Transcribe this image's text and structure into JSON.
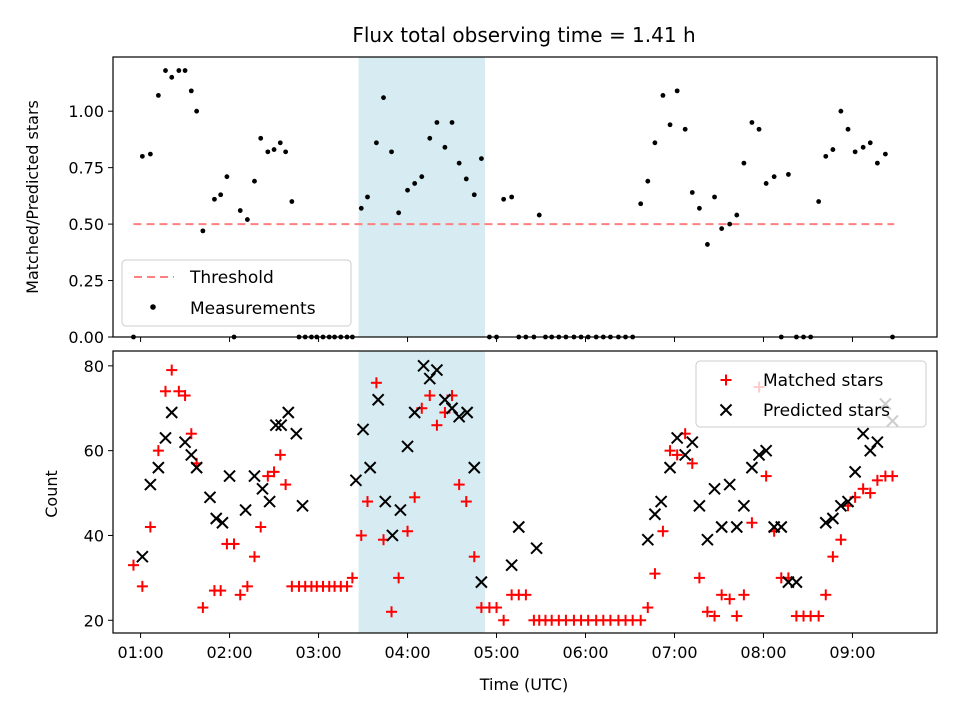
{
  "chart_data": [
    {
      "type": "scatter",
      "title": "Flux total observing time = 1.41 h",
      "xlabel": "",
      "ylabel": "Matched/Predicted stars",
      "xlim": [
        0.69,
        9.95
      ],
      "ylim": [
        0,
        1.24
      ],
      "yticks": [
        0.0,
        0.25,
        0.5,
        0.75,
        1.0
      ],
      "ytick_labels": [
        "0.00",
        "0.25",
        "0.50",
        "0.75",
        "1.00"
      ],
      "highlight_span": {
        "x0": 3.45,
        "x1": 4.87,
        "color": "#add8e6"
      },
      "threshold": {
        "name": "Threshold",
        "value": 0.5,
        "x0": 0.92,
        "x1": 9.47,
        "color": "#ff8080"
      },
      "legend": {
        "placement": "lower-left",
        "entries": [
          "Threshold",
          "Measurements"
        ]
      },
      "series": [
        {
          "name": "Measurements",
          "color": "#000000",
          "x": [
            0.92,
            1.02,
            1.11,
            1.2,
            1.28,
            1.35,
            1.43,
            1.5,
            1.57,
            1.63,
            1.7,
            1.83,
            1.9,
            1.97,
            2.05,
            2.12,
            2.2,
            2.28,
            2.35,
            2.43,
            2.5,
            2.57,
            2.63,
            2.7,
            2.78,
            2.85,
            2.92,
            2.98,
            3.05,
            3.12,
            3.18,
            3.25,
            3.32,
            3.38,
            3.48,
            3.55,
            3.65,
            3.73,
            3.82,
            3.9,
            4.0,
            4.08,
            4.16,
            4.25,
            4.33,
            4.42,
            4.5,
            4.58,
            4.66,
            4.75,
            4.83,
            4.92,
            5.0,
            5.08,
            5.17,
            5.25,
            5.33,
            5.42,
            5.48,
            5.55,
            5.62,
            5.7,
            5.78,
            5.87,
            5.95,
            6.03,
            6.12,
            6.2,
            6.28,
            6.37,
            6.45,
            6.53,
            6.62,
            6.7,
            6.78,
            6.87,
            6.95,
            7.03,
            7.12,
            7.2,
            7.28,
            7.37,
            7.45,
            7.53,
            7.62,
            7.7,
            7.78,
            7.87,
            7.95,
            8.03,
            8.12,
            8.2,
            8.28,
            8.37,
            8.45,
            8.53,
            8.62,
            8.7,
            8.78,
            8.87,
            8.95,
            9.03,
            9.12,
            9.2,
            9.28,
            9.37,
            9.45
          ],
          "y": [
            0.0,
            0.8,
            0.81,
            1.07,
            1.18,
            1.15,
            1.18,
            1.18,
            1.09,
            1.0,
            0.47,
            0.61,
            0.63,
            0.71,
            0.0,
            0.56,
            0.52,
            0.69,
            0.88,
            0.82,
            0.83,
            0.86,
            0.82,
            0.6,
            0.0,
            0.0,
            0.0,
            0.0,
            0.0,
            0.0,
            0.0,
            0.0,
            0.0,
            0.0,
            0.57,
            0.62,
            0.86,
            1.06,
            0.82,
            0.55,
            0.65,
            0.68,
            0.71,
            0.88,
            0.95,
            0.84,
            0.95,
            0.77,
            0.7,
            0.63,
            0.79,
            0.0,
            0.0,
            0.61,
            0.62,
            0.0,
            0.0,
            0.0,
            0.54,
            0.0,
            0.0,
            0.0,
            0.0,
            0.0,
            0.0,
            0.0,
            0.0,
            0.0,
            0.0,
            0.0,
            0.0,
            0.0,
            0.59,
            0.69,
            0.86,
            1.07,
            0.94,
            1.09,
            0.92,
            0.64,
            0.57,
            0.41,
            0.62,
            0.48,
            0.5,
            0.54,
            0.77,
            0.95,
            0.92,
            0.68,
            0.71,
            0.0,
            0.72,
            0.0,
            0.0,
            0.0,
            0.6,
            0.8,
            0.83,
            1.0,
            0.92,
            0.82,
            0.84,
            0.86,
            0.77,
            0.81,
            0.0
          ]
        }
      ]
    },
    {
      "type": "scatter",
      "title": "",
      "xlabel": "Time (UTC)",
      "ylabel": "Count",
      "xlim": [
        0.69,
        9.95
      ],
      "ylim": [
        17,
        83.5
      ],
      "xticks": [
        1,
        2,
        3,
        4,
        5,
        6,
        7,
        8,
        9
      ],
      "xtick_labels": [
        "01:00",
        "02:00",
        "03:00",
        "04:00",
        "05:00",
        "06:00",
        "07:00",
        "08:00",
        "09:00"
      ],
      "yticks": [
        20,
        40,
        60,
        80
      ],
      "ytick_labels": [
        "20",
        "40",
        "60",
        "80"
      ],
      "highlight_span": {
        "x0": 3.45,
        "x1": 4.87,
        "color": "#add8e6"
      },
      "legend": {
        "placement": "top-right",
        "entries": [
          "Matched stars",
          "Predicted stars"
        ]
      },
      "series": [
        {
          "name": "Matched stars",
          "marker": "plus",
          "color": "#ff0000",
          "x": [
            0.92,
            1.02,
            1.11,
            1.2,
            1.28,
            1.35,
            1.43,
            1.5,
            1.57,
            1.63,
            1.7,
            1.83,
            1.9,
            1.97,
            2.05,
            2.12,
            2.2,
            2.28,
            2.35,
            2.43,
            2.5,
            2.57,
            2.63,
            2.7,
            2.78,
            2.85,
            2.92,
            2.98,
            3.05,
            3.12,
            3.18,
            3.25,
            3.32,
            3.38,
            3.48,
            3.55,
            3.65,
            3.73,
            3.82,
            3.9,
            4.0,
            4.08,
            4.16,
            4.25,
            4.33,
            4.42,
            4.5,
            4.58,
            4.66,
            4.75,
            4.83,
            4.92,
            5.0,
            5.08,
            5.17,
            5.25,
            5.33,
            5.42,
            5.48,
            5.55,
            5.62,
            5.7,
            5.78,
            5.87,
            5.95,
            6.03,
            6.12,
            6.2,
            6.28,
            6.37,
            6.45,
            6.53,
            6.62,
            6.7,
            6.78,
            6.87,
            6.95,
            7.03,
            7.12,
            7.2,
            7.28,
            7.37,
            7.45,
            7.53,
            7.62,
            7.7,
            7.78,
            7.87,
            7.95,
            8.03,
            8.12,
            8.2,
            8.28,
            8.37,
            8.45,
            8.53,
            8.62,
            8.7,
            8.78,
            8.87,
            8.95,
            9.03,
            9.12,
            9.2,
            9.28,
            9.37,
            9.45
          ],
          "y": [
            33,
            28,
            42,
            60,
            74,
            79,
            74,
            73,
            64,
            57,
            23,
            27,
            27,
            38,
            38,
            26,
            28,
            35,
            42,
            54,
            55,
            59,
            52,
            28,
            28,
            28,
            28,
            28,
            28,
            28,
            28,
            28,
            28,
            30,
            40,
            48,
            76,
            39,
            22,
            30,
            41,
            49,
            70,
            73,
            66,
            69,
            73,
            52,
            48,
            35,
            23,
            23,
            23,
            20,
            26,
            26,
            26,
            20,
            20,
            20,
            20,
            20,
            20,
            20,
            20,
            20,
            20,
            20,
            20,
            20,
            20,
            20,
            20,
            23,
            31,
            41,
            60,
            59,
            64,
            57,
            30,
            22,
            21,
            26,
            25,
            21,
            26,
            43,
            75,
            54,
            41,
            30,
            30,
            21,
            21,
            21,
            21,
            26,
            35,
            39,
            47,
            49,
            51,
            50,
            53,
            54,
            54
          ]
        },
        {
          "name": "Predicted stars",
          "marker": "x",
          "color": "#000000",
          "x": [
            1.02,
            1.11,
            1.2,
            1.28,
            1.35,
            1.5,
            1.57,
            1.63,
            1.78,
            1.85,
            1.92,
            2.0,
            2.18,
            2.28,
            2.37,
            2.45,
            2.52,
            2.58,
            2.66,
            2.75,
            2.82,
            3.42,
            3.5,
            3.58,
            3.67,
            3.75,
            3.83,
            3.92,
            4.0,
            4.08,
            4.18,
            4.25,
            4.33,
            4.42,
            4.5,
            4.58,
            4.67,
            4.75,
            4.83,
            5.17,
            5.25,
            5.45,
            6.7,
            6.78,
            6.85,
            6.95,
            7.03,
            7.12,
            7.2,
            7.28,
            7.37,
            7.45,
            7.53,
            7.62,
            7.7,
            7.78,
            7.87,
            7.95,
            8.03,
            8.12,
            8.2,
            8.28,
            8.37,
            8.7,
            8.78,
            8.87,
            8.95,
            9.03,
            9.12,
            9.2,
            9.28,
            9.37,
            9.45
          ],
          "y": [
            35,
            52,
            56,
            63,
            69,
            62,
            59,
            56,
            49,
            44,
            43,
            54,
            46,
            54,
            51,
            48,
            66,
            66,
            69,
            64,
            47,
            53,
            65,
            56,
            72,
            48,
            40,
            46,
            61,
            69,
            80,
            77,
            79,
            72,
            70,
            68,
            69,
            56,
            29,
            33,
            42,
            37,
            39,
            45,
            48,
            56,
            63,
            59,
            62,
            47,
            39,
            51,
            42,
            52,
            42,
            47,
            56,
            59,
            60,
            42,
            42,
            29,
            29,
            43,
            44,
            47,
            48,
            55,
            64,
            60,
            62,
            71,
            67
          ]
        }
      ]
    }
  ]
}
